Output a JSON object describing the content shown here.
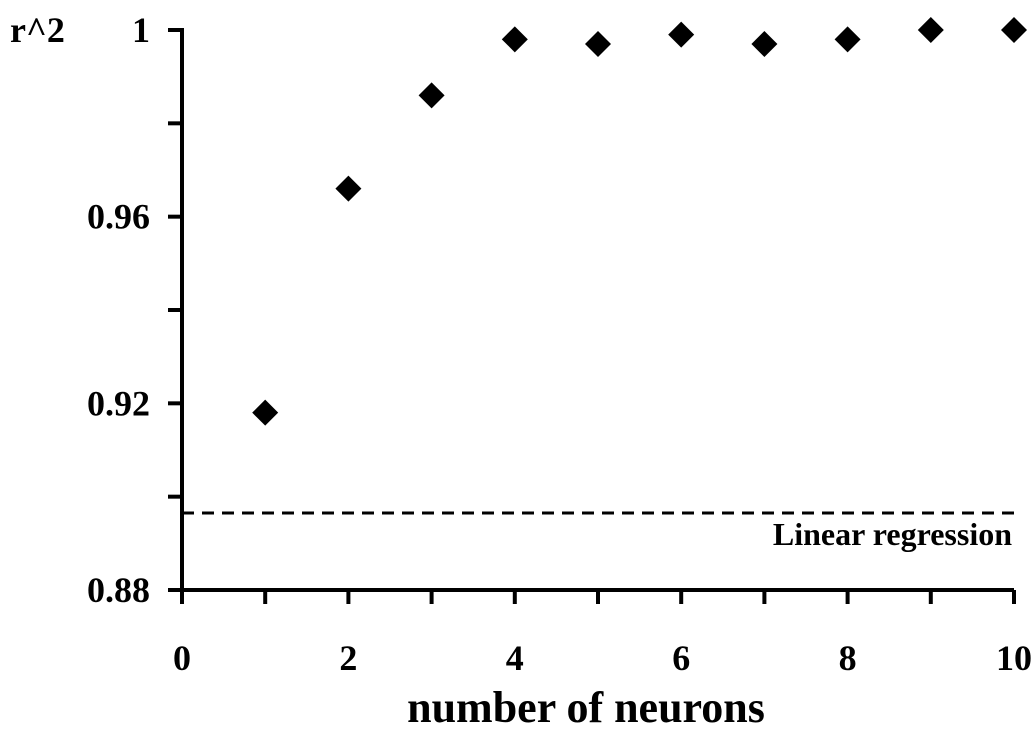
{
  "chart_data": {
    "type": "scatter",
    "title": "",
    "xlabel": "number of neurons",
    "ylabel": "r^2",
    "xlim": [
      0,
      10
    ],
    "ylim": [
      0.88,
      1.0
    ],
    "x_ticks": [
      0,
      1,
      2,
      3,
      4,
      5,
      6,
      7,
      8,
      9,
      10
    ],
    "x_tick_labels": [
      "0",
      "",
      "2",
      "",
      "4",
      "",
      "6",
      "",
      "8",
      "",
      "10"
    ],
    "y_ticks": [
      0.88,
      0.9,
      0.92,
      0.94,
      0.96,
      0.98,
      1.0
    ],
    "y_tick_labels": [
      "0.88",
      "",
      "0.92",
      "",
      "0.96",
      "",
      "1"
    ],
    "grid": false,
    "marker": "diamond",
    "color": "#000000",
    "series": [
      {
        "x": [
          1,
          2,
          3,
          4,
          5,
          6,
          7,
          8,
          9,
          10
        ],
        "y": [
          0.918,
          0.966,
          0.986,
          0.998,
          0.997,
          0.999,
          0.997,
          0.998,
          1.0,
          1.0
        ]
      }
    ],
    "reference_line": {
      "label": "Linear regression",
      "y": 0.8965,
      "style": "dashed"
    }
  }
}
